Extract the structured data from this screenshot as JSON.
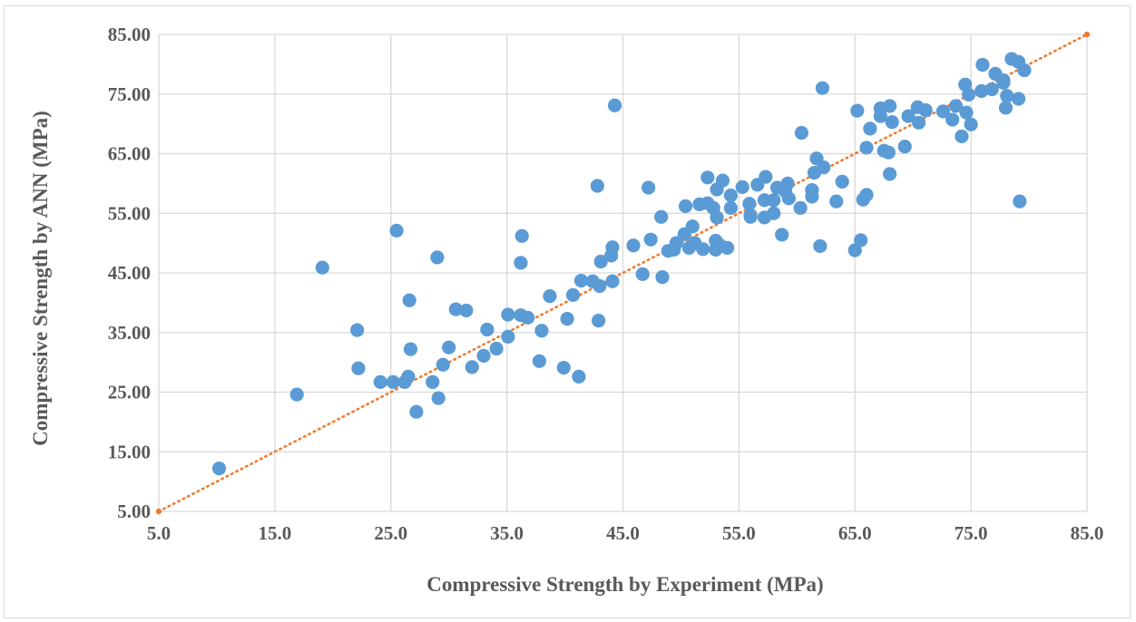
{
  "chart_data": {
    "type": "scatter",
    "title": "",
    "xlabel": "Compressive Strength by Experiment (MPa)",
    "ylabel": "Compressive Strength by ANN (MPa)",
    "xlim": [
      5,
      85
    ],
    "ylim": [
      5,
      85
    ],
    "x_ticks": [
      "5.0",
      "15.0",
      "25.0",
      "35.0",
      "45.0",
      "55.0",
      "65.0",
      "75.0",
      "85.0"
    ],
    "y_ticks": [
      "5.00",
      "15.00",
      "25.00",
      "35.00",
      "45.00",
      "55.00",
      "65.00",
      "75.00",
      "85.00"
    ],
    "grid": true,
    "colors": {
      "points": "#5b9bd5",
      "trendline": "#ed7d31",
      "grid": "#d9d9d9",
      "text": "#595959"
    },
    "trendline": {
      "style": "dotted",
      "x": [
        5,
        85
      ],
      "y": [
        5,
        85
      ]
    },
    "series": [
      {
        "points": [
          [
            10.2,
            12.2
          ],
          [
            16.9,
            24.6
          ],
          [
            19.1,
            45.9
          ],
          [
            22.1,
            35.4
          ],
          [
            22.2,
            29.0
          ],
          [
            24.1,
            26.7
          ],
          [
            25.2,
            26.7
          ],
          [
            25.5,
            52.1
          ],
          [
            26.2,
            26.7
          ],
          [
            26.5,
            27.6
          ],
          [
            26.6,
            40.4
          ],
          [
            26.7,
            32.2
          ],
          [
            27.2,
            21.7
          ],
          [
            28.6,
            26.7
          ],
          [
            29.0,
            47.6
          ],
          [
            29.1,
            24.0
          ],
          [
            29.5,
            29.6
          ],
          [
            30.0,
            32.5
          ],
          [
            30.6,
            38.9
          ],
          [
            31.5,
            38.7
          ],
          [
            32.0,
            29.2
          ],
          [
            33.0,
            31.1
          ],
          [
            33.3,
            35.5
          ],
          [
            34.1,
            32.3
          ],
          [
            35.1,
            38.0
          ],
          [
            35.1,
            34.3
          ],
          [
            36.2,
            37.9
          ],
          [
            36.2,
            46.7
          ],
          [
            36.3,
            51.2
          ],
          [
            36.8,
            37.5
          ],
          [
            37.8,
            30.2
          ],
          [
            38.0,
            35.3
          ],
          [
            38.7,
            41.1
          ],
          [
            39.9,
            29.1
          ],
          [
            40.2,
            37.3
          ],
          [
            40.7,
            41.3
          ],
          [
            41.2,
            27.6
          ],
          [
            41.4,
            43.7
          ],
          [
            42.4,
            43.6
          ],
          [
            42.8,
            59.6
          ],
          [
            43.0,
            42.8
          ],
          [
            42.9,
            37.0
          ],
          [
            43.1,
            46.9
          ],
          [
            44.0,
            47.9
          ],
          [
            44.1,
            49.3
          ],
          [
            44.1,
            43.6
          ],
          [
            44.3,
            73.1
          ],
          [
            45.9,
            49.6
          ],
          [
            46.7,
            44.8
          ],
          [
            47.2,
            59.3
          ],
          [
            47.4,
            50.6
          ],
          [
            48.3,
            54.4
          ],
          [
            48.4,
            44.3
          ],
          [
            48.9,
            48.7
          ],
          [
            49.4,
            48.9
          ],
          [
            49.6,
            50.0
          ],
          [
            50.3,
            51.5
          ],
          [
            50.4,
            56.2
          ],
          [
            50.7,
            49.2
          ],
          [
            51.0,
            52.8
          ],
          [
            51.2,
            50.0
          ],
          [
            51.6,
            56.5
          ],
          [
            51.9,
            49.0
          ],
          [
            52.3,
            56.7
          ],
          [
            52.3,
            61.0
          ],
          [
            52.8,
            55.9
          ],
          [
            53.1,
            59.0
          ],
          [
            53.1,
            54.3
          ],
          [
            53.0,
            50.4
          ],
          [
            53.0,
            48.9
          ],
          [
            53.4,
            49.6
          ],
          [
            53.6,
            60.5
          ],
          [
            54.0,
            49.2
          ],
          [
            54.3,
            58.0
          ],
          [
            54.3,
            55.9
          ],
          [
            55.3,
            59.4
          ],
          [
            55.9,
            56.6
          ],
          [
            56.0,
            54.7
          ],
          [
            56.0,
            54.4
          ],
          [
            56.6,
            59.8
          ],
          [
            57.2,
            54.3
          ],
          [
            57.2,
            57.2
          ],
          [
            57.3,
            61.1
          ],
          [
            58.0,
            57.2
          ],
          [
            58.0,
            55.0
          ],
          [
            58.3,
            59.3
          ],
          [
            58.7,
            51.4
          ],
          [
            59.0,
            58.7
          ],
          [
            59.2,
            60.0
          ],
          [
            59.3,
            57.5
          ],
          [
            60.3,
            55.9
          ],
          [
            60.4,
            68.5
          ],
          [
            61.3,
            57.8
          ],
          [
            61.3,
            58.9
          ],
          [
            61.5,
            61.8
          ],
          [
            61.7,
            64.2
          ],
          [
            62.0,
            49.5
          ],
          [
            62.2,
            76.0
          ],
          [
            62.3,
            62.7
          ],
          [
            63.4,
            57.0
          ],
          [
            63.9,
            60.3
          ],
          [
            65.0,
            48.8
          ],
          [
            65.2,
            72.2
          ],
          [
            65.5,
            50.5
          ],
          [
            65.7,
            57.3
          ],
          [
            66.0,
            58.1
          ],
          [
            66.0,
            66.0
          ],
          [
            66.3,
            69.2
          ],
          [
            67.2,
            71.3
          ],
          [
            67.2,
            72.6
          ],
          [
            67.5,
            65.5
          ],
          [
            67.9,
            65.2
          ],
          [
            68.0,
            61.6
          ],
          [
            68.0,
            73.0
          ],
          [
            68.2,
            70.3
          ],
          [
            69.3,
            66.2
          ],
          [
            69.6,
            71.3
          ],
          [
            70.4,
            72.8
          ],
          [
            70.5,
            70.2
          ],
          [
            71.1,
            72.3
          ],
          [
            72.6,
            72.1
          ],
          [
            73.4,
            70.7
          ],
          [
            73.7,
            73.0
          ],
          [
            74.2,
            67.9
          ],
          [
            74.5,
            76.6
          ],
          [
            74.6,
            71.9
          ],
          [
            74.8,
            74.9
          ],
          [
            75.0,
            69.9
          ],
          [
            75.9,
            75.5
          ],
          [
            76.0,
            79.9
          ],
          [
            76.8,
            75.8
          ],
          [
            77.1,
            78.4
          ],
          [
            77.8,
            76.9
          ],
          [
            77.8,
            77.3
          ],
          [
            78.0,
            72.7
          ],
          [
            78.1,
            74.7
          ],
          [
            78.5,
            80.9
          ],
          [
            79.1,
            80.4
          ],
          [
            79.1,
            74.2
          ],
          [
            79.2,
            57.0
          ],
          [
            79.6,
            79.0
          ]
        ]
      }
    ]
  }
}
